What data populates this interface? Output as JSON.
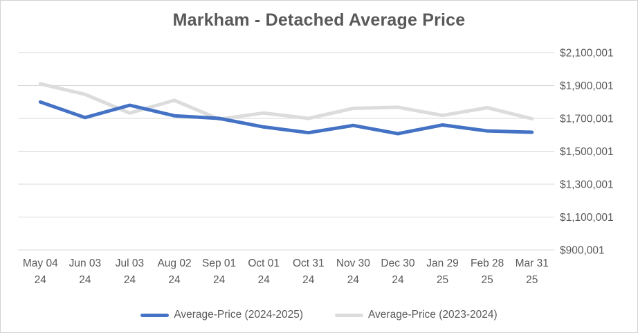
{
  "title": "Markham - Detached Average Price",
  "chart_data": {
    "type": "line",
    "title": "Markham - Detached Average Price",
    "categories": [
      "May 04 24",
      "Jun 03 24",
      "Jul 03 24",
      "Aug 02 24",
      "Sep 01 24",
      "Oct 01 24",
      "Oct 31 24",
      "Nov 30 24",
      "Dec 30 24",
      "Jan 29 25",
      "Feb 28 25",
      "Mar 31 25"
    ],
    "category_line1": [
      "May 04",
      "Jun 03",
      "Jul 03",
      "Aug 02",
      "Sep 01",
      "Oct 01",
      "Oct 31",
      "Nov 30",
      "Dec 30",
      "Jan 29",
      "Feb 28",
      "Mar 31"
    ],
    "category_line2": [
      "24",
      "24",
      "24",
      "24",
      "24",
      "24",
      "24",
      "24",
      "24",
      "25",
      "25",
      "25"
    ],
    "series": [
      {
        "name": "Average-Price (2024-2025)",
        "color": "#4472C4",
        "values": [
          1800000,
          1705000,
          1780000,
          1716000,
          1700000,
          1648000,
          1613000,
          1657000,
          1607000,
          1660000,
          1624000,
          1616000
        ]
      },
      {
        "name": "Average-Price (2023-2024)",
        "color": "#DCDCDC",
        "values": [
          1910000,
          1846000,
          1732000,
          1810000,
          1695000,
          1733000,
          1700000,
          1761000,
          1768000,
          1718000,
          1765000,
          1698000
        ]
      }
    ],
    "y_ticks": [
      2100001,
      1900001,
      1700001,
      1500001,
      1300001,
      1100001,
      900001
    ],
    "y_tick_labels": [
      "$2,100,001",
      "$1,900,001",
      "$1,700,001",
      "$1,500,001",
      "$1,300,001",
      "$1,100,001",
      "$900,001"
    ],
    "ylim": [
      900001,
      2100001
    ],
    "ylabel": "",
    "xlabel": "",
    "grid": "horizontal",
    "gridline_color": "#D9D9D9",
    "legend_position": "bottom",
    "text_color": "#595959"
  }
}
